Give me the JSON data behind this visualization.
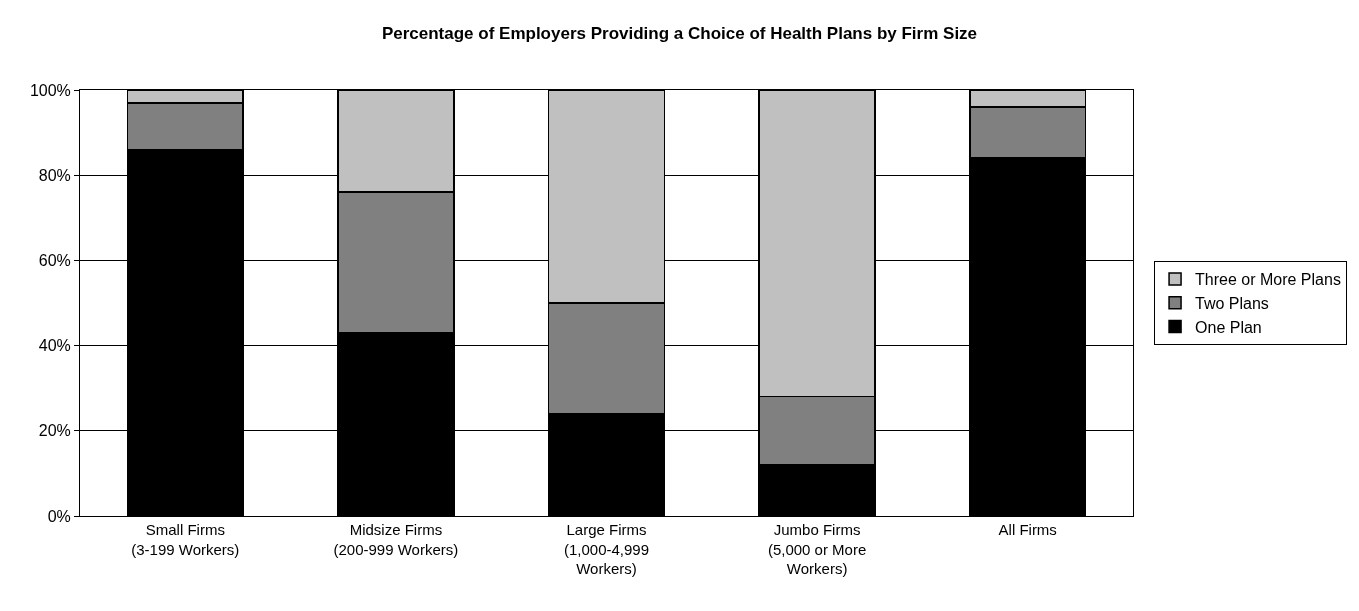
{
  "chart_data": {
    "type": "bar",
    "stacked": true,
    "title": "Percentage of Employers Providing a Choice of Health Plans by Firm Size",
    "categories": [
      "Small Firms\n(3-199 Workers)",
      "Midsize Firms\n(200-999 Workers)",
      "Large Firms\n(1,000-4,999\nWorkers)",
      "Jumbo Firms\n(5,000 or More\nWorkers)",
      "All Firms"
    ],
    "series": [
      {
        "name": "One Plan",
        "color": "#000000",
        "values": [
          86,
          43,
          24,
          12,
          84
        ]
      },
      {
        "name": "Two Plans",
        "color": "#808080",
        "values": [
          11,
          33,
          26,
          16,
          12
        ]
      },
      {
        "name": "Three or More Plans",
        "color": "#c0c0c0",
        "values": [
          3,
          24,
          50,
          72,
          4
        ]
      }
    ],
    "ylim": [
      0,
      100
    ],
    "yticks": [
      {
        "value": 0,
        "label": "0%"
      },
      {
        "value": 20,
        "label": "20%"
      },
      {
        "value": 40,
        "label": "40%"
      },
      {
        "value": 60,
        "label": "60%"
      },
      {
        "value": 80,
        "label": "80%"
      },
      {
        "value": 100,
        "label": "100%"
      }
    ],
    "grid": "y",
    "legend": "right"
  }
}
